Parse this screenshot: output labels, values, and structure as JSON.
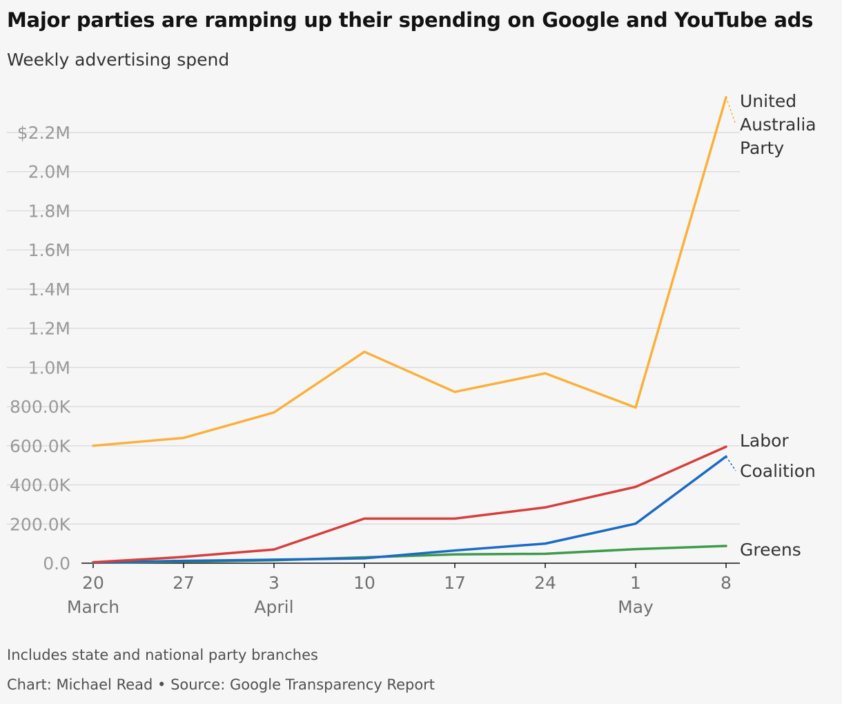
{
  "header": {
    "title": "Major parties are ramping up their spending on Google and YouTube ads",
    "subtitle": "Weekly advertising spend"
  },
  "footer": {
    "note": "Includes state and national party branches",
    "credit": "Chart: Michael Read • Source: Google Transparency Report"
  },
  "chart_data": {
    "type": "line",
    "title": "Major parties are ramping up their spending on Google and YouTube ads",
    "subtitle": "Weekly advertising spend",
    "x": [
      "20 March",
      "27 March",
      "3 April",
      "10 April",
      "17 April",
      "24 April",
      "1 May",
      "8 May"
    ],
    "x_tick_labels": [
      {
        "day": "20",
        "month": "March"
      },
      {
        "day": "27",
        "month": ""
      },
      {
        "day": "3",
        "month": "April"
      },
      {
        "day": "10",
        "month": ""
      },
      {
        "day": "17",
        "month": ""
      },
      {
        "day": "24",
        "month": ""
      },
      {
        "day": "1",
        "month": "May"
      },
      {
        "day": "8",
        "month": ""
      }
    ],
    "y_ticks": [
      0,
      200000,
      400000,
      600000,
      800000,
      1000000,
      1200000,
      1400000,
      1600000,
      1800000,
      2000000,
      2200000
    ],
    "y_tick_labels": [
      "0.0",
      "200.0K",
      "400.0K",
      "600.0K",
      "800.0K",
      "1.0M",
      "1.2M",
      "1.4M",
      "1.6M",
      "1.8M",
      "2.0M",
      "$2.2M"
    ],
    "ylim": [
      0,
      2400000
    ],
    "grid": true,
    "series": [
      {
        "name": "United Australia Party",
        "label_lines": [
          "United",
          "Australia",
          "Party"
        ],
        "color": "#fbb03b",
        "values": [
          600000,
          640000,
          770000,
          1080000,
          875000,
          970000,
          795000,
          2380000
        ]
      },
      {
        "name": "Labor",
        "label_lines": [
          "Labor"
        ],
        "color": "#d63f3b",
        "values": [
          5000,
          32000,
          70000,
          228000,
          228000,
          285000,
          390000,
          595000
        ]
      },
      {
        "name": "Coalition",
        "label_lines": [
          "Coalition"
        ],
        "color": "#1b6ac4",
        "values": [
          3000,
          12000,
          18000,
          25000,
          65000,
          100000,
          202000,
          545000
        ]
      },
      {
        "name": "Greens",
        "label_lines": [
          "Greens"
        ],
        "color": "#3e9b4a",
        "values": [
          2000,
          8000,
          15000,
          30000,
          45000,
          48000,
          72000,
          88000
        ]
      }
    ]
  }
}
